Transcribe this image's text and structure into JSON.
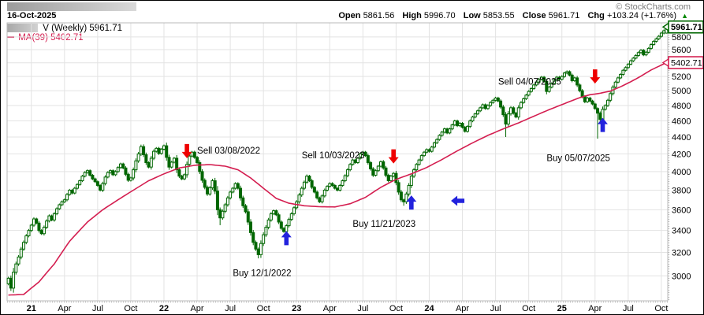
{
  "header": {
    "date": "16-Oct-2025",
    "copyright": "© StockCharts.com",
    "quote": {
      "open_label": "Open",
      "open": "5861.56",
      "high_label": "High",
      "high": "5996.70",
      "low_label": "Low",
      "low": "5853.55",
      "close_label": "Close",
      "close": "5961.71",
      "chg_label": "Chg",
      "chg": "+103.24 (+1.76%)",
      "direction_icon": "▲"
    }
  },
  "legend": {
    "series_label": "V (Weekly) 5961.71",
    "ma_label": "MA(39) 5402.71"
  },
  "chart_data": {
    "type": "candlestick",
    "interval": "weekly",
    "title": "V (Weekly)",
    "last_bar": {
      "open": 5861.56,
      "high": 5996.7,
      "low": 5853.55,
      "close": 5961.71,
      "change": "+103.24 (+1.76%)"
    },
    "axis": {
      "scale": "log",
      "price_min": 2800,
      "price_max": 6030,
      "price_ticks": [
        3000,
        3200,
        3400,
        3600,
        3800,
        4000,
        4200,
        4400,
        4600,
        4800,
        5000,
        5200,
        5400,
        5600,
        5800
      ],
      "hidden_tick_labels": [
        5400
      ],
      "last_price_label": "5961.71",
      "ma_price_label": "5402.71"
    },
    "x_ticks": [
      {
        "i": 9,
        "label": "21",
        "bold": true
      },
      {
        "i": 22,
        "label": "Apr",
        "bold": false
      },
      {
        "i": 35,
        "label": "Jul",
        "bold": false
      },
      {
        "i": 48,
        "label": "Oct",
        "bold": false
      },
      {
        "i": 61,
        "label": "22",
        "bold": true
      },
      {
        "i": 74,
        "label": "Apr",
        "bold": false
      },
      {
        "i": 87,
        "label": "Jul",
        "bold": false
      },
      {
        "i": 100,
        "label": "Oct",
        "bold": false
      },
      {
        "i": 113,
        "label": "23",
        "bold": true
      },
      {
        "i": 126,
        "label": "Apr",
        "bold": false
      },
      {
        "i": 139,
        "label": "Jul",
        "bold": false
      },
      {
        "i": 152,
        "label": "Oct",
        "bold": false
      },
      {
        "i": 165,
        "label": "24",
        "bold": true
      },
      {
        "i": 178,
        "label": "Apr",
        "bold": false
      },
      {
        "i": 191,
        "label": "Jul",
        "bold": false
      },
      {
        "i": 204,
        "label": "Oct",
        "bold": false
      },
      {
        "i": 217,
        "label": "25",
        "bold": true
      },
      {
        "i": 230,
        "label": "Apr",
        "bold": false
      },
      {
        "i": 243,
        "label": "Jul",
        "bold": false
      },
      {
        "i": 256,
        "label": "Oct",
        "bold": false
      }
    ],
    "closes": [
      2980,
      2900,
      3030,
      3100,
      3160,
      3230,
      3290,
      3350,
      3400,
      3450,
      3510,
      3470,
      3400,
      3370,
      3430,
      3490,
      3540,
      3500,
      3560,
      3610,
      3650,
      3680,
      3700,
      3755,
      3800,
      3770,
      3820,
      3860,
      3900,
      3950,
      3990,
      4010,
      3960,
      3920,
      3890,
      3850,
      3800,
      3870,
      3940,
      3990,
      4010,
      3965,
      4000,
      4045,
      4085,
      4040,
      3970,
      3905,
      3930,
      4020,
      4120,
      4200,
      4285,
      4190,
      4100,
      4050,
      4150,
      4230,
      4265,
      4205,
      4255,
      4295,
      4160,
      4050,
      4105,
      4150,
      4020,
      3950,
      3920,
      3965,
      4080,
      4175,
      4220,
      4160,
      4100,
      4000,
      3905,
      3830,
      3760,
      3825,
      3900,
      3790,
      3600,
      3520,
      3585,
      3650,
      3720,
      3780,
      3820,
      3870,
      3820,
      3720,
      3640,
      3580,
      3480,
      3380,
      3290,
      3230,
      3180,
      3280,
      3360,
      3430,
      3500,
      3560,
      3590,
      3550,
      3480,
      3420,
      3390,
      3445,
      3505,
      3560,
      3620,
      3680,
      3750,
      3820,
      3885,
      3950,
      3900,
      3830,
      3780,
      3720,
      3680,
      3740,
      3800,
      3840,
      3870,
      3850,
      3820,
      3800,
      3850,
      3900,
      3955,
      4020,
      4080,
      4130,
      4100,
      4150,
      4200,
      4220,
      4180,
      4100,
      4030,
      3960,
      4010,
      4060,
      4110,
      4040,
      3960,
      3900,
      3950,
      3980,
      3880,
      3780,
      3700,
      3680,
      3760,
      3850,
      3950,
      4020,
      4080,
      4130,
      4180,
      4220,
      4250,
      4230,
      4280,
      4330,
      4370,
      4420,
      4460,
      4500,
      4450,
      4500,
      4550,
      4600,
      4540,
      4570,
      4520,
      4470,
      4530,
      4600,
      4650,
      4690,
      4730,
      4770,
      4810,
      4760,
      4800,
      4840,
      4870,
      4900,
      4860,
      4780,
      4680,
      4560,
      4690,
      4770,
      4700,
      4650,
      4770,
      4840,
      4890,
      4940,
      4990,
      5030,
      5080,
      5120,
      5160,
      5190,
      5130,
      4990,
      5050,
      5100,
      5150,
      5190,
      5160,
      5200,
      5250,
      5270,
      5220,
      5140,
      5180,
      5080,
      5000,
      4920,
      4850,
      4900,
      4860,
      4820,
      4760,
      4700,
      4620,
      4750,
      4800,
      4870,
      4960,
      5050,
      5120,
      5180,
      5230,
      5290,
      5330,
      5380,
      5430,
      5470,
      5510,
      5555,
      5590,
      5520,
      5560,
      5620,
      5680,
      5730,
      5770,
      5810,
      5862,
      5900,
      5961.71
    ],
    "wick_overrides": {
      "83": {
        "low": 3450
      },
      "98": {
        "low": 3148
      },
      "155": {
        "low": 3640
      },
      "195": {
        "low": 4400
      },
      "231": {
        "low": 4380
      },
      "258": {
        "open": 5861.56,
        "high": 5996.7,
        "low": 5853.55
      }
    },
    "ma39": {
      "label": "MA(39)",
      "value": 5402.71,
      "anchors": [
        [
          0,
          2845
        ],
        [
          6,
          2850
        ],
        [
          12,
          2950
        ],
        [
          18,
          3100
        ],
        [
          24,
          3300
        ],
        [
          31,
          3480
        ],
        [
          37,
          3600
        ],
        [
          43,
          3700
        ],
        [
          49,
          3800
        ],
        [
          55,
          3900
        ],
        [
          61,
          3975
        ],
        [
          67,
          4040
        ],
        [
          73,
          4070
        ],
        [
          79,
          4078
        ],
        [
          85,
          4060
        ],
        [
          90,
          4020
        ],
        [
          95,
          3930
        ],
        [
          100,
          3820
        ],
        [
          105,
          3715
        ],
        [
          110,
          3665
        ],
        [
          116,
          3640
        ],
        [
          122,
          3630
        ],
        [
          128,
          3628
        ],
        [
          134,
          3660
        ],
        [
          140,
          3725
        ],
        [
          146,
          3830
        ],
        [
          152,
          3915
        ],
        [
          158,
          3975
        ],
        [
          164,
          4045
        ],
        [
          170,
          4135
        ],
        [
          176,
          4235
        ],
        [
          182,
          4330
        ],
        [
          188,
          4420
        ],
        [
          194,
          4500
        ],
        [
          200,
          4575
        ],
        [
          206,
          4660
        ],
        [
          212,
          4745
        ],
        [
          218,
          4825
        ],
        [
          224,
          4905
        ],
        [
          228,
          4945
        ],
        [
          232,
          4965
        ],
        [
          236,
          4995
        ],
        [
          240,
          5055
        ],
        [
          244,
          5125
        ],
        [
          248,
          5205
        ],
        [
          252,
          5295
        ],
        [
          258,
          5402.71
        ]
      ]
    },
    "annotations": [
      {
        "type": "sell",
        "label": "Sell 03/08/2022",
        "arrow": {
          "week": 70,
          "price": 4150
        },
        "text": {
          "week": 74,
          "price": 4240
        }
      },
      {
        "type": "buy",
        "label": "Buy 12/1/2022",
        "arrow": {
          "week": 109,
          "price": 3395
        },
        "text": {
          "week": 88,
          "price": 3025
        }
      },
      {
        "type": "sell",
        "label": "Sell 10/03/2023",
        "arrow": {
          "week": 151,
          "price": 4090
        },
        "text": {
          "week": 115,
          "price": 4185
        }
      },
      {
        "type": "buy",
        "label": "Buy 11/21/2023",
        "arrow": {
          "week": 158,
          "price": 3745
        },
        "text": {
          "week": 135,
          "price": 3465
        }
      },
      {
        "type": "left",
        "label": "",
        "arrow": {
          "week": 176,
          "price": 3690
        }
      },
      {
        "type": "sell",
        "label": "Sell 04/07/2025",
        "arrow": {
          "week": 230,
          "price": 5100
        },
        "text": {
          "week": 192,
          "price": 5130
        }
      },
      {
        "type": "buy",
        "label": "Buy 05/07/2025",
        "arrow": {
          "week": 233,
          "price": 4640
        },
        "text": {
          "week": 211,
          "price": 4155
        }
      }
    ],
    "colors": {
      "candle": "#006600",
      "ma_line": "#d41e50",
      "sell_arrow": "#ee0000",
      "buy_arrow": "#2222dd",
      "grid": "#e3e3e3",
      "plot_border": "#b8b8b8",
      "close_box_border": "#006600",
      "ma_box_border": "#d41e50",
      "axis_text": "#000000"
    }
  }
}
